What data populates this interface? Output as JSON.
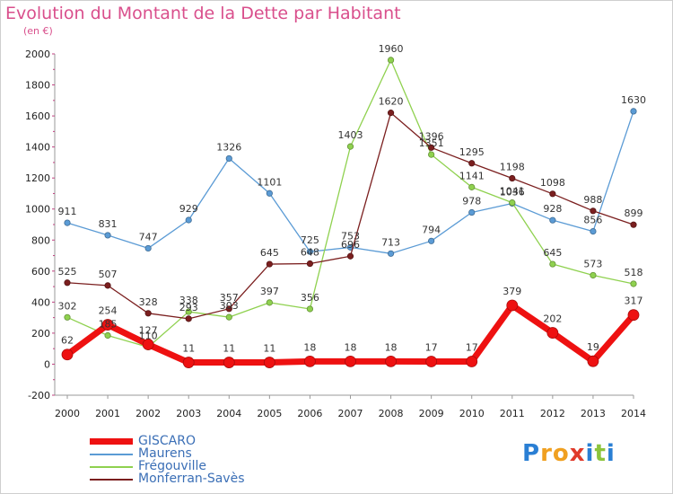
{
  "chart_data": {
    "type": "line",
    "title": "Evolution du Montant de la Dette par Habitant",
    "unit_label": "(en €)",
    "xlabel": "",
    "ylabel": "",
    "x": [
      "2000",
      "2001",
      "2002",
      "2003",
      "2004",
      "2005",
      "2006",
      "2007",
      "2008",
      "2009",
      "2010",
      "2011",
      "2012",
      "2013",
      "2014"
    ],
    "ylim": [
      -200,
      2000
    ],
    "yticks": [
      -200,
      0,
      200,
      400,
      600,
      800,
      1000,
      1200,
      1400,
      1600,
      1800,
      2000
    ],
    "grid": false,
    "legend_position": "bottom-left",
    "series": [
      {
        "name": "Maurens",
        "color": "#5b9bd5",
        "values": [
          911,
          831,
          747,
          929,
          1326,
          1101,
          725,
          753,
          713,
          794,
          978,
          1036,
          928,
          856,
          1630
        ]
      },
      {
        "name": "Frégouville",
        "color": "#8fd14f",
        "values": [
          302,
          185,
          110,
          338,
          303,
          397,
          356,
          1403,
          1960,
          1351,
          1141,
          1041,
          645,
          573,
          518
        ]
      },
      {
        "name": "Monferran-Savès",
        "color": "#7b1f1f",
        "values": [
          525,
          507,
          328,
          293,
          357,
          645,
          648,
          696,
          1620,
          1396,
          1295,
          1198,
          1098,
          988,
          899
        ]
      },
      {
        "name": "GISCARO",
        "color": "#ee1111",
        "values": [
          62,
          254,
          127,
          11,
          11,
          11,
          18,
          18,
          18,
          17,
          17,
          379,
          202,
          19,
          317
        ]
      }
    ],
    "legend_order": [
      "GISCARO",
      "Maurens",
      "Frégouville",
      "Monferran-Savès"
    ]
  },
  "logo": {
    "letters": [
      {
        "ch": "P",
        "color": "#2a7fd4"
      },
      {
        "ch": "r",
        "color": "#f0a020"
      },
      {
        "ch": "o",
        "color": "#f0a020"
      },
      {
        "ch": "x",
        "color": "#e03a2a"
      },
      {
        "ch": "i",
        "color": "#2a7fd4"
      },
      {
        "ch": "t",
        "color": "#8cc43c"
      },
      {
        "ch": "i",
        "color": "#2a7fd4"
      }
    ]
  }
}
